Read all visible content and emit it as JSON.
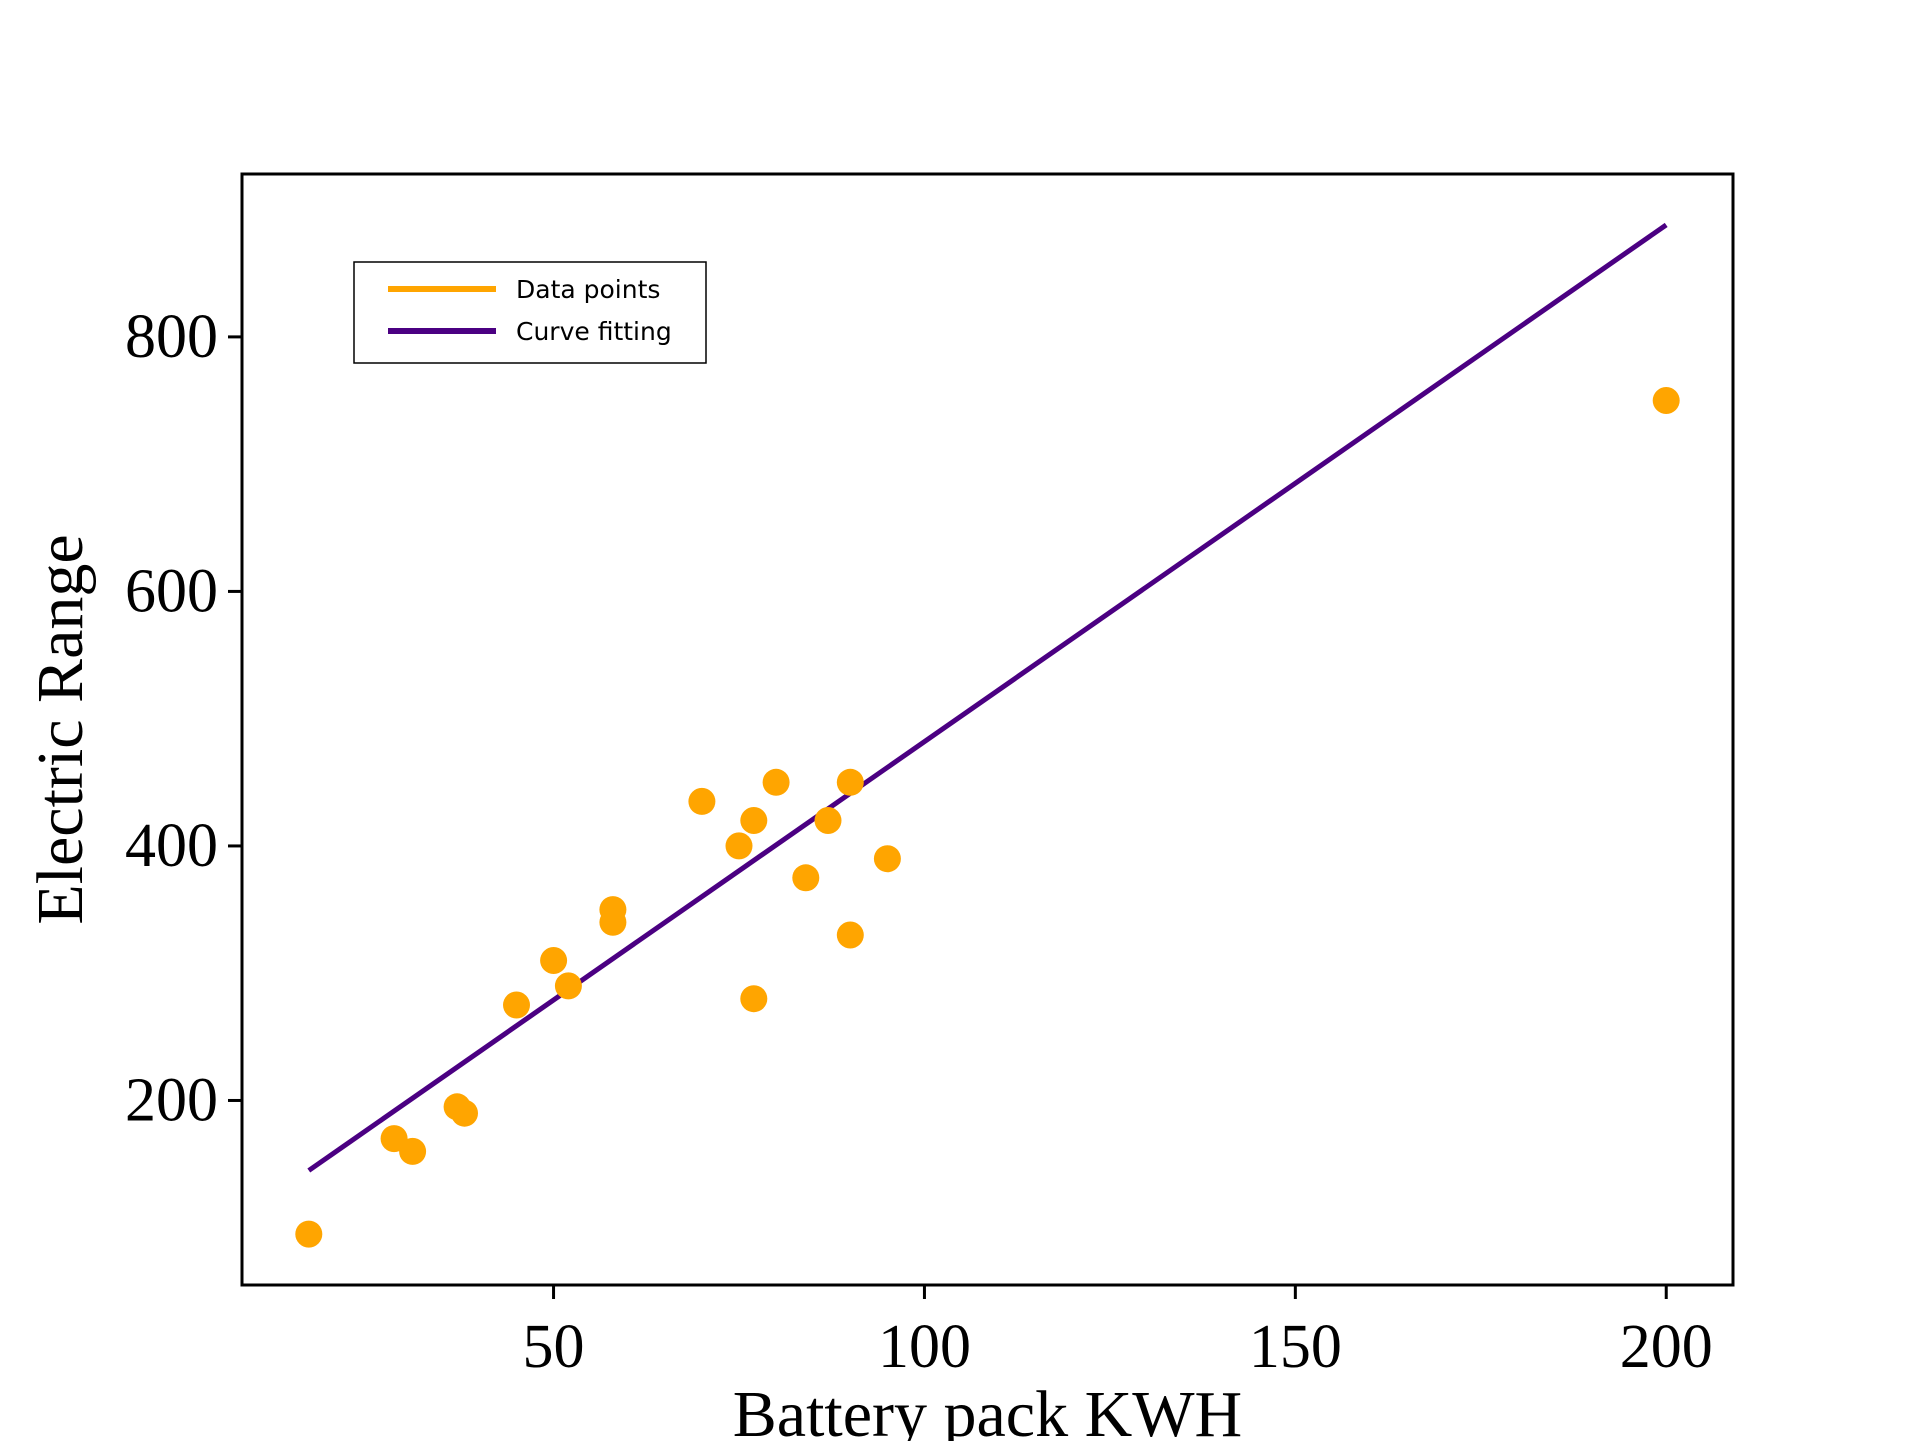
{
  "chart_data": {
    "type": "scatter",
    "xlabel": "Battery pack KWH",
    "ylabel": "Electric Range",
    "xlim": [
      8,
      209
    ],
    "ylim": [
      55,
      928
    ],
    "x_ticks": [
      50,
      100,
      150,
      200
    ],
    "x_tick_labels": [
      "50",
      "100",
      "150",
      "200"
    ],
    "y_ticks": [
      200,
      400,
      600,
      800
    ],
    "y_tick_labels": [
      "200",
      "400",
      "600",
      "800"
    ],
    "grid": false,
    "legend_position": "top-left",
    "series": [
      {
        "name": "Data points",
        "kind": "scatter",
        "color": "#FFA500",
        "points": [
          [
            17,
            95
          ],
          [
            28.5,
            170
          ],
          [
            31,
            160
          ],
          [
            37,
            195
          ],
          [
            38,
            190
          ],
          [
            45,
            275
          ],
          [
            50,
            310
          ],
          [
            52,
            290
          ],
          [
            58,
            350
          ],
          [
            58,
            340
          ],
          [
            70,
            435
          ],
          [
            75,
            400
          ],
          [
            77,
            420
          ],
          [
            77,
            280
          ],
          [
            80,
            450
          ],
          [
            84,
            375
          ],
          [
            87,
            420
          ],
          [
            90,
            450
          ],
          [
            90,
            330
          ],
          [
            95,
            390
          ],
          [
            200,
            750
          ]
        ]
      },
      {
        "name": "Curve fitting",
        "kind": "line",
        "color": "#4B0082",
        "points": [
          [
            17,
            145
          ],
          [
            200,
            888
          ]
        ]
      }
    ]
  }
}
